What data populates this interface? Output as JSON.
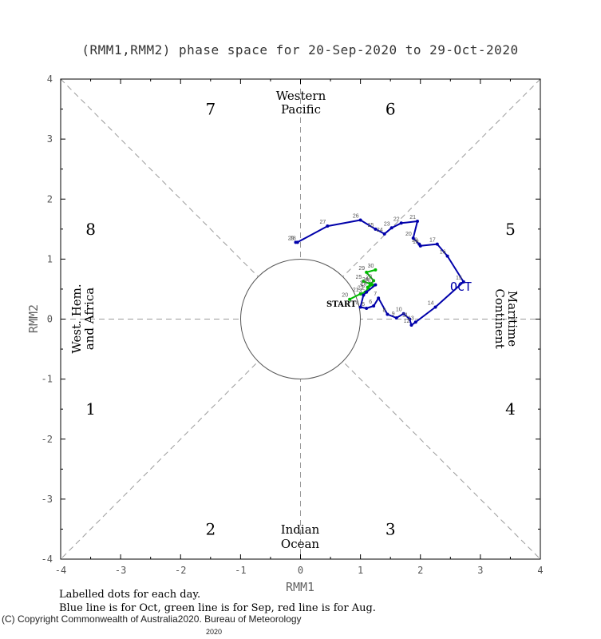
{
  "chart_data": {
    "type": "line",
    "title": "(RMM1,RMM2) phase space for 20-Sep-2020 to 29-Oct-2020",
    "xlabel": "RMM1",
    "ylabel": "RMM2",
    "xlim": [
      -4,
      4
    ],
    "ylim": [
      -4,
      4
    ],
    "xticks": [
      "-4",
      "-3",
      "-2",
      "-1",
      "0",
      "1",
      "2",
      "3",
      "4"
    ],
    "yticks": [
      "-4",
      "-3",
      "-2",
      "-1",
      "0",
      "1",
      "2",
      "3",
      "4"
    ],
    "phases": [
      "1",
      "2",
      "3",
      "4",
      "5",
      "6",
      "7",
      "8"
    ],
    "regions": {
      "west_pacific": [
        "Western",
        "Pacific"
      ],
      "indian_ocean": [
        "Indian",
        "Ocean"
      ],
      "maritime_continent": [
        "Maritime",
        "Continent"
      ],
      "west_hem_africa": [
        "West. Hem.",
        "and Africa"
      ]
    },
    "start_label": "START",
    "month_label": "OCT",
    "footnotes": [
      "Labelled dots for each day.",
      "Blue line is for Oct, green line is for Sep, red line is for Aug."
    ],
    "copyright": "(C) Copyright Commonwealth of Australia",
    "copyright_year": "2020",
    "copyright_tail": ". Bureau of Meteorology",
    "copyright_year2": "2020",
    "series": [
      {
        "month": "Sep",
        "color": "#00bb00",
        "points": [
          {
            "day": "20",
            "x": 0.82,
            "y": 0.33
          },
          {
            "day": "21",
            "x": 1.0,
            "y": 0.42
          },
          {
            "day": "22",
            "x": 1.08,
            "y": 0.45
          },
          {
            "day": "23",
            "x": 1.13,
            "y": 0.52
          },
          {
            "day": "24",
            "x": 1.16,
            "y": 0.59
          },
          {
            "day": "25",
            "x": 1.05,
            "y": 0.63
          },
          {
            "day": "26",
            "x": 1.2,
            "y": 0.57
          },
          {
            "day": "27",
            "x": 1.12,
            "y": 0.53
          },
          {
            "day": "28",
            "x": 1.22,
            "y": 0.64
          },
          {
            "day": "29",
            "x": 1.1,
            "y": 0.78
          },
          {
            "day": "30",
            "x": 1.25,
            "y": 0.82
          }
        ]
      },
      {
        "month": "Oct",
        "color": "#0000aa",
        "points": [
          {
            "day": "1",
            "x": 1.25,
            "y": 0.57
          },
          {
            "day": "2",
            "x": 1.1,
            "y": 0.45
          },
          {
            "day": "3",
            "x": 1.05,
            "y": 0.4
          },
          {
            "day": "4",
            "x": 1.0,
            "y": 0.2
          },
          {
            "day": "5",
            "x": 1.1,
            "y": 0.18
          },
          {
            "day": "6",
            "x": 1.22,
            "y": 0.22
          },
          {
            "day": "7",
            "x": 1.3,
            "y": 0.35
          },
          {
            "day": "8",
            "x": 1.45,
            "y": 0.08
          },
          {
            "day": "9",
            "x": 1.6,
            "y": 0.02
          },
          {
            "day": "10",
            "x": 1.72,
            "y": 0.09
          },
          {
            "day": "11",
            "x": 1.82,
            "y": 0.0
          },
          {
            "day": "12",
            "x": 1.85,
            "y": -0.1
          },
          {
            "day": "13",
            "x": 1.92,
            "y": -0.05
          },
          {
            "day": "14",
            "x": 2.25,
            "y": 0.2
          },
          {
            "day": "15",
            "x": 2.72,
            "y": 0.62
          },
          {
            "day": "16",
            "x": 2.45,
            "y": 1.05
          },
          {
            "day": "17",
            "x": 2.28,
            "y": 1.25
          },
          {
            "day": "18",
            "x": 2.0,
            "y": 1.22
          },
          {
            "day": "19",
            "x": 1.98,
            "y": 1.25
          },
          {
            "day": "20",
            "x": 1.88,
            "y": 1.35
          },
          {
            "day": "21",
            "x": 1.95,
            "y": 1.63
          },
          {
            "day": "22",
            "x": 1.68,
            "y": 1.6
          },
          {
            "day": "23",
            "x": 1.52,
            "y": 1.52
          },
          {
            "day": "24",
            "x": 1.4,
            "y": 1.42
          },
          {
            "day": "25",
            "x": 1.25,
            "y": 1.5
          },
          {
            "day": "26",
            "x": 1.0,
            "y": 1.65
          },
          {
            "day": "27",
            "x": 0.45,
            "y": 1.55
          },
          {
            "day": "28",
            "x": -0.05,
            "y": 1.28
          },
          {
            "day": "29",
            "x": -0.08,
            "y": 1.28
          }
        ]
      }
    ]
  }
}
